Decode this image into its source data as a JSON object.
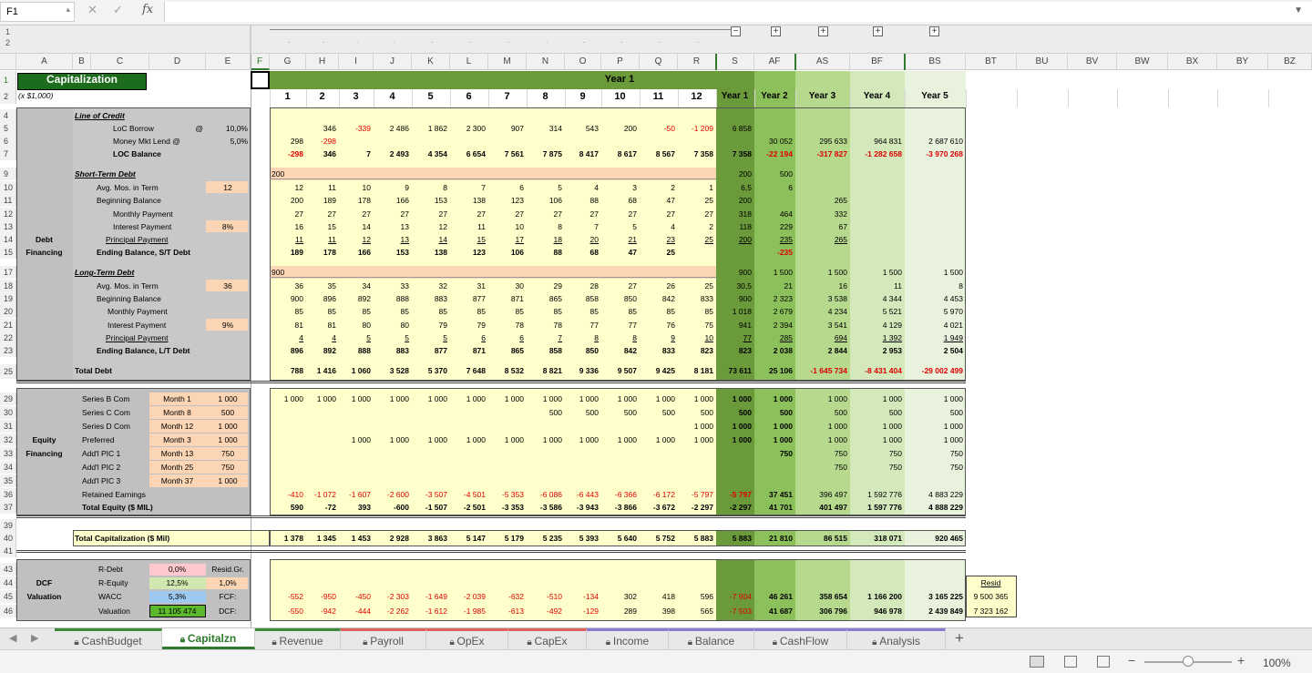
{
  "toolbar": {
    "cell_ref": "F1",
    "fx": "fx",
    "cancel": "✕",
    "confirm": "✓",
    "outline_levels": [
      "1",
      "2"
    ],
    "group_toggles": [
      "−",
      "+",
      "+",
      "+",
      "+"
    ]
  },
  "columns": [
    "A",
    "B",
    "C",
    "D",
    "E",
    "F",
    "G",
    "H",
    "I",
    "J",
    "K",
    "L",
    "M",
    "N",
    "O",
    "P",
    "Q",
    "R",
    "S",
    "AF",
    "AS",
    "BF",
    "BS",
    "BT",
    "BU",
    "BV",
    "BW",
    "BX",
    "BY",
    "BZ"
  ],
  "title": "Capitalization",
  "units": "(x $1,000)",
  "year1": "Year 1",
  "year1_row": "1",
  "months": [
    "1",
    "2",
    "3",
    "4",
    "5",
    "6",
    "7",
    "8",
    "9",
    "10",
    "11",
    "12"
  ],
  "year_heads": [
    "Year 1",
    "Year 2",
    "Year 3",
    "Year 4",
    "Year 5"
  ],
  "debt_label": [
    "Debt",
    "Financing"
  ],
  "equity_label": [
    "Equity",
    "Financing"
  ],
  "dcf_label": [
    "DCF",
    "Valuation"
  ],
  "loc": {
    "title": "Line of Credit",
    "rows": [
      {
        "label": "LoC Borrow",
        "a": "@",
        "e": "10,0%",
        "v": [
          "",
          "346",
          "-339",
          "2 486",
          "1 862",
          "2 300",
          "907",
          "314",
          "543",
          "200",
          "-50",
          "-1 209",
          "6 858",
          "",
          "",
          "",
          ""
        ]
      },
      {
        "label": "Money Mkt Lend @",
        "e": "5,0%",
        "v": [
          "298",
          "-298",
          "",
          "",
          "",
          "",
          "",
          "",
          "",
          "",
          "",
          "",
          "",
          "30 052",
          "295 633",
          "964 831",
          "2 687 610"
        ]
      },
      {
        "label": "LOC Balance",
        "v": [
          "-298",
          "346",
          "7",
          "2 493",
          "4 354",
          "6 654",
          "7 561",
          "7 875",
          "8 417",
          "8 617",
          "8 567",
          "7 358",
          "7 358",
          "-22 194",
          "-317 827",
          "-1 282 658",
          "-3 970 268"
        ]
      }
    ]
  },
  "std": {
    "title": "Short-Term Debt",
    "input": "200",
    "rows": [
      {
        "label": "Avg. Mos. in Term",
        "e": "12",
        "v": [
          "12",
          "11",
          "10",
          "9",
          "8",
          "7",
          "6",
          "5",
          "4",
          "3",
          "2",
          "1",
          "6,5",
          "6",
          "",
          "",
          ""
        ]
      },
      {
        "label": "Beginning Balance",
        "v": [
          "200",
          "189",
          "178",
          "166",
          "153",
          "138",
          "123",
          "106",
          "88",
          "68",
          "47",
          "25",
          "200",
          "",
          "265",
          "",
          ""
        ]
      },
      {
        "label": "Monthly Payment",
        "v": [
          "27",
          "27",
          "27",
          "27",
          "27",
          "27",
          "27",
          "27",
          "27",
          "27",
          "27",
          "27",
          "318",
          "464",
          "332",
          "",
          ""
        ]
      },
      {
        "label": "Interest Payment",
        "e": "8%",
        "v": [
          "16",
          "15",
          "14",
          "13",
          "12",
          "11",
          "10",
          "8",
          "7",
          "5",
          "4",
          "2",
          "118",
          "229",
          "67",
          "",
          ""
        ]
      },
      {
        "label": "Principal Payment",
        "v": [
          "11",
          "11",
          "12",
          "13",
          "14",
          "15",
          "17",
          "18",
          "20",
          "21",
          "23",
          "25",
          "200",
          "235",
          "265",
          "",
          ""
        ]
      },
      {
        "label": "Ending Balance, S/T Debt",
        "v": [
          "189",
          "178",
          "166",
          "153",
          "138",
          "123",
          "106",
          "88",
          "68",
          "47",
          "25",
          "",
          "",
          "-235",
          "",
          "",
          ""
        ]
      }
    ],
    "s9": "200",
    "af9": "500"
  },
  "ltd": {
    "title": "Long-Term Debt",
    "input": "900",
    "rows": [
      {
        "label": "Avg. Mos. in Term",
        "e": "36",
        "v": [
          "36",
          "35",
          "34",
          "33",
          "32",
          "31",
          "30",
          "29",
          "28",
          "27",
          "26",
          "25",
          "30,5",
          "21",
          "16",
          "11",
          "8"
        ]
      },
      {
        "label": "Beginning Balance",
        "v": [
          "900",
          "896",
          "892",
          "888",
          "883",
          "877",
          "871",
          "865",
          "858",
          "850",
          "842",
          "833",
          "900",
          "2 323",
          "3 538",
          "4 344",
          "4 453"
        ]
      },
      {
        "label": "Monthly Payment",
        "v": [
          "85",
          "85",
          "85",
          "85",
          "85",
          "85",
          "85",
          "85",
          "85",
          "85",
          "85",
          "85",
          "1 018",
          "2 679",
          "4 234",
          "5 521",
          "5 970"
        ]
      },
      {
        "label": "Interest Payment",
        "e": "9%",
        "v": [
          "81",
          "81",
          "80",
          "80",
          "79",
          "79",
          "78",
          "78",
          "77",
          "77",
          "76",
          "75",
          "941",
          "2 394",
          "3 541",
          "4 129",
          "4 021"
        ]
      },
      {
        "label": "Principal Payment",
        "v": [
          "4",
          "4",
          "5",
          "5",
          "5",
          "6",
          "6",
          "7",
          "8",
          "8",
          "9",
          "10",
          "77",
          "285",
          "694",
          "1 392",
          "1 949"
        ]
      },
      {
        "label": "Ending Balance, L/T Debt",
        "v": [
          "896",
          "892",
          "888",
          "883",
          "877",
          "871",
          "865",
          "858",
          "850",
          "842",
          "833",
          "823",
          "823",
          "2 038",
          "2 844",
          "2 953",
          "2 504"
        ]
      }
    ],
    "r17": [
      "900",
      "1 500",
      "1 500",
      "1 500",
      "1 500"
    ]
  },
  "total_debt": {
    "label": "Total Debt",
    "v": [
      "788",
      "1 416",
      "1 060",
      "3 528",
      "5 370",
      "7 648",
      "8 532",
      "8 821",
      "9 336",
      "9 507",
      "9 425",
      "8 181",
      "73 611",
      "25 106",
      "-1 645 734",
      "-8 431 404",
      "-29 002 499"
    ]
  },
  "equity": [
    {
      "label": "Series B Com",
      "d": "Month 1",
      "e": "1 000",
      "v": [
        "1 000",
        "1 000",
        "1 000",
        "1 000",
        "1 000",
        "1 000",
        "1 000",
        "1 000",
        "1 000",
        "1 000",
        "1 000",
        "1 000",
        "1 000",
        "1 000",
        "1 000",
        "1 000",
        "1 000"
      ]
    },
    {
      "label": "Series C Com",
      "d": "Month 8",
      "e": "500",
      "v": [
        "",
        "",
        "",
        "",
        "",
        "",
        "",
        "500",
        "500",
        "500",
        "500",
        "500",
        "500",
        "500",
        "500",
        "500",
        "500"
      ]
    },
    {
      "label": "Series D Com",
      "d": "Month 12",
      "e": "1 000",
      "v": [
        "",
        "",
        "",
        "",
        "",
        "",
        "",
        "",
        "",
        "",
        "",
        "1 000",
        "1 000",
        "1 000",
        "1 000",
        "1 000",
        "1 000"
      ]
    },
    {
      "label": "Preferred",
      "d": "Month 3",
      "e": "1 000",
      "v": [
        "",
        "",
        "1 000",
        "1 000",
        "1 000",
        "1 000",
        "1 000",
        "1 000",
        "1 000",
        "1 000",
        "1 000",
        "1 000",
        "1 000",
        "1 000",
        "1 000",
        "1 000",
        "1 000"
      ]
    },
    {
      "label": "Add'l PIC 1",
      "d": "Month 13",
      "e": "750",
      "v": [
        "",
        "",
        "",
        "",
        "",
        "",
        "",
        "",
        "",
        "",
        "",
        "",
        "",
        "750",
        "750",
        "750",
        "750"
      ]
    },
    {
      "label": "Add'l PIC 2",
      "d": "Month 25",
      "e": "750",
      "v": [
        "",
        "",
        "",
        "",
        "",
        "",
        "",
        "",
        "",
        "",
        "",
        "",
        "",
        "",
        "750",
        "750",
        "750"
      ]
    },
    {
      "label": "Add'l PIC 3",
      "d": "Month 37",
      "e": "1 000",
      "v": [
        "",
        "",
        "",
        "",
        "",
        "",
        "",
        "",
        "",
        "",
        "",
        "",
        "",
        "",
        "",
        "",
        ""
      ]
    },
    {
      "label": "Retained Earnings",
      "v": [
        "-410",
        "-1 072",
        "-1 607",
        "-2 600",
        "-3 507",
        "-4 501",
        "-5 353",
        "-6 086",
        "-6 443",
        "-6 366",
        "-6 172",
        "-5 797",
        "-5 797",
        "37 451",
        "396 497",
        "1 592 776",
        "4 883 229"
      ]
    },
    {
      "label": "Total Equity ($ MIL)",
      "v": [
        "590",
        "-72",
        "393",
        "-600",
        "-1 507",
        "-2 501",
        "-3 353",
        "-3 586",
        "-3 943",
        "-3 866",
        "-3 672",
        "-2 297",
        "-2 297",
        "41 701",
        "401 497",
        "1 597 776",
        "4 888 229"
      ]
    }
  ],
  "total_cap": {
    "label": "Total Capitalization ($ Mil)",
    "v": [
      "1 378",
      "1 345",
      "1 453",
      "2 928",
      "3 863",
      "5 147",
      "5 179",
      "5 235",
      "5 393",
      "5 640",
      "5 752",
      "5 883",
      "5 883",
      "21 810",
      "86 515",
      "318 071",
      "920 465"
    ]
  },
  "dcf": {
    "labels": [
      "R-Debt",
      "R-Equity",
      "WACC",
      "Valuation"
    ],
    "inputs": [
      "0,0%",
      "12,5%",
      "5,3%",
      "11 105 474"
    ],
    "e": [
      "Resid.Gr.",
      "1,0%",
      "FCF:",
      "DCF:"
    ],
    "fcf": [
      "-552",
      "-950",
      "-450",
      "-2 303",
      "-1 649",
      "-2 039",
      "-632",
      "-510",
      "-134",
      "302",
      "418",
      "596",
      "-7 904",
      "46 261",
      "358 654",
      "1 166 200",
      "3 165 225"
    ],
    "dcf": [
      "-550",
      "-942",
      "-444",
      "-2 262",
      "-1 612",
      "-1 985",
      "-613",
      "-492",
      "-129",
      "289",
      "398",
      "565",
      "-7 503",
      "41 687",
      "306 796",
      "946 978",
      "2 439 849"
    ],
    "resid": [
      "Resid",
      "9 500 365",
      "7 323 162"
    ]
  },
  "rows": [
    "1",
    "2",
    "4",
    "5",
    "6",
    "7",
    "9",
    "10",
    "11",
    "12",
    "13",
    "14",
    "15",
    "17",
    "18",
    "19",
    "20",
    "21",
    "22",
    "23",
    "25",
    "29",
    "30",
    "31",
    "32",
    "33",
    "34",
    "35",
    "36",
    "37",
    "39",
    "40",
    "41",
    "43",
    "44",
    "45",
    "46"
  ],
  "sheets": [
    "CashBudget",
    "Capitalzn",
    "Revenue",
    "Payroll",
    "OpEx",
    "CapEx",
    "Income",
    "Balance",
    "CashFlow",
    "Analysis"
  ],
  "sheet_colors": [
    "#3a8a3a",
    "#3a8a3a",
    "#3a8a3a",
    "#e06060",
    "#e06060",
    "#e06060",
    "#8a7ad0",
    "#8a7ad0",
    "#8a7ad0",
    "#8a7ad0"
  ],
  "zoom": "100%"
}
